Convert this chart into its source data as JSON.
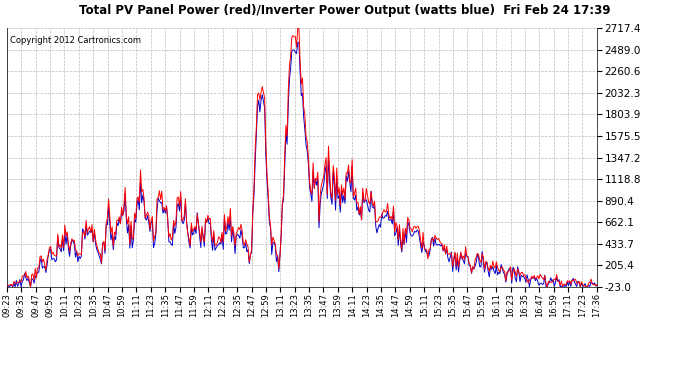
{
  "title": "Total PV Panel Power (red)/Inverter Power Output (watts blue)  Fri Feb 24 17:39",
  "copyright": "Copyright 2012 Cartronics.com",
  "ylabel_values": [
    2717.4,
    2489.0,
    2260.6,
    2032.3,
    1803.9,
    1575.5,
    1347.2,
    1118.8,
    890.4,
    662.1,
    433.7,
    205.4,
    -23.0
  ],
  "ymin": -23.0,
  "ymax": 2717.4,
  "bg_color": "#ffffff",
  "grid_color": "#bbbbbb",
  "red_color": "#ff0000",
  "blue_color": "#0000cc",
  "x_labels": [
    "09:23",
    "09:35",
    "09:47",
    "09:59",
    "10:11",
    "10:23",
    "10:35",
    "10:47",
    "10:59",
    "11:11",
    "11:23",
    "11:35",
    "11:47",
    "11:59",
    "12:11",
    "12:23",
    "12:35",
    "12:47",
    "12:59",
    "13:11",
    "13:23",
    "13:35",
    "13:47",
    "13:59",
    "14:11",
    "14:23",
    "14:35",
    "14:47",
    "14:59",
    "15:11",
    "15:23",
    "15:35",
    "15:47",
    "15:59",
    "16:11",
    "16:23",
    "16:35",
    "16:47",
    "16:59",
    "17:11",
    "17:23",
    "17:36"
  ],
  "n_points": 500
}
